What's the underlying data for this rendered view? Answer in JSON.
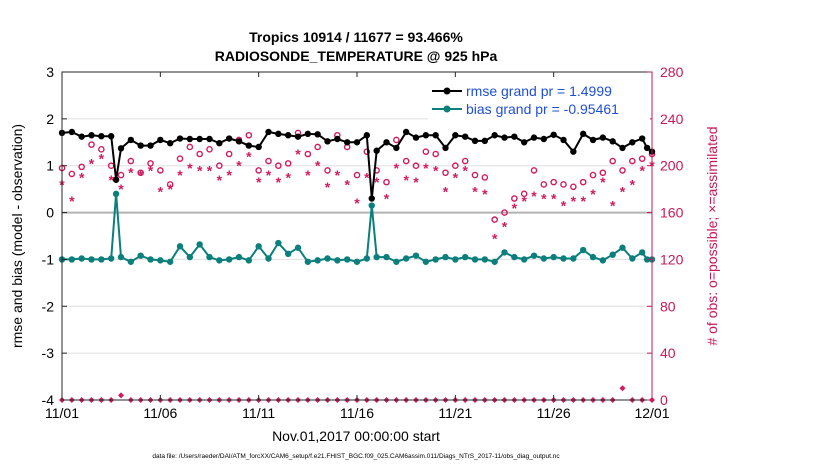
{
  "chart_data": {
    "type": "line",
    "title": "Tropics 10914 / 11677 = 93.466%",
    "subtitle": "RADIOSONDE_TEMPERATURE @ 925 hPa",
    "xlabel": "Nov.01,2017 00:00:00 start",
    "ylabel": "rmse and bias (model - observation)",
    "y2label": "# of obs: o=possible; ×=assimilated",
    "footnote": "data file: /Users/raeder/DAI/ATM_forcXX/CAM6_setup/f.e21.FHIST_BGC.f09_025.CAM6assim.011/Diags_NTrS_2017-11/obs_diag_output.nc",
    "xlim": [
      0,
      30
    ],
    "ylim": [
      -4,
      3
    ],
    "y2lim": [
      0,
      280
    ],
    "x_ticks": [
      0,
      5,
      10,
      15,
      20,
      25,
      30
    ],
    "x_tick_labels": [
      "11/01",
      "11/06",
      "11/11",
      "11/16",
      "11/21",
      "11/26",
      "12/01"
    ],
    "y_ticks": [
      -4,
      -3,
      -2,
      -1,
      0,
      1,
      2,
      3
    ],
    "y_tick_labels": [
      "-4",
      "-3",
      "-2",
      "-1",
      "0",
      "1",
      "2",
      "3"
    ],
    "y2_ticks": [
      0,
      40,
      80,
      120,
      160,
      200,
      240,
      280
    ],
    "y2_tick_labels": [
      "0",
      "40",
      "80",
      "120",
      "160",
      "200",
      "240",
      "280"
    ],
    "legend": {
      "position": "top-right",
      "entries": [
        "rmse grand pr = 1.4999",
        "bias grand pr = -0.95461"
      ]
    },
    "colors": {
      "rmse": "#000000",
      "bias": "#0a7f7c",
      "obs": "#d11a5f",
      "zero_line": "#b3b3b3",
      "grid": "#e0e0e0",
      "legend_text": "#1f4fd6",
      "right_axis": "#c8185a"
    },
    "series": [
      {
        "name": "rmse",
        "axis": "left",
        "x": [
          0,
          0.5,
          1,
          1.5,
          2,
          2.5,
          2.75,
          3,
          3.5,
          4,
          4.5,
          5,
          5.5,
          6,
          6.5,
          7,
          7.5,
          8,
          8.5,
          9,
          9.5,
          10,
          10.5,
          11,
          11.5,
          12,
          12.5,
          13,
          13.5,
          14,
          14.5,
          15,
          15.5,
          15.75,
          16,
          16.5,
          17,
          17.5,
          18,
          18.5,
          19,
          19.5,
          20,
          20.5,
          21,
          21.5,
          22,
          22.5,
          23,
          23.5,
          24,
          24.5,
          25,
          25.5,
          26,
          26.5,
          27,
          27.5,
          28,
          28.5,
          29,
          29.5,
          29.75,
          30
        ],
        "values": [
          1.7,
          1.72,
          1.62,
          1.65,
          1.63,
          1.63,
          0.7,
          1.37,
          1.55,
          1.43,
          1.43,
          1.55,
          1.48,
          1.58,
          1.57,
          1.57,
          1.57,
          1.48,
          1.58,
          1.52,
          1.43,
          1.4,
          1.72,
          1.68,
          1.65,
          1.62,
          1.68,
          1.67,
          1.52,
          1.57,
          1.5,
          1.5,
          1.65,
          0.3,
          1.32,
          1.5,
          1.38,
          1.72,
          1.6,
          1.65,
          1.65,
          1.38,
          1.65,
          1.62,
          1.53,
          1.53,
          1.65,
          1.6,
          1.62,
          1.5,
          1.6,
          1.57,
          1.66,
          1.55,
          1.3,
          1.68,
          1.55,
          1.6,
          1.52,
          1.38,
          1.5,
          1.58,
          1.38,
          1.3
        ]
      },
      {
        "name": "bias",
        "axis": "left",
        "x": [
          0,
          0.5,
          1,
          1.5,
          2,
          2.5,
          2.75,
          3,
          3.5,
          4,
          4.5,
          5,
          5.5,
          6,
          6.5,
          7,
          7.5,
          8,
          8.5,
          9,
          9.5,
          10,
          10.5,
          11,
          11.5,
          12,
          12.5,
          13,
          13.5,
          14,
          14.5,
          15,
          15.5,
          15.75,
          16,
          16.5,
          17,
          17.5,
          18,
          18.5,
          19,
          19.5,
          20,
          20.5,
          21,
          21.5,
          22,
          22.5,
          23,
          23.5,
          24,
          24.5,
          25,
          25.5,
          26,
          26.5,
          27,
          27.5,
          28,
          28.5,
          29,
          29.5,
          29.75,
          30
        ],
        "values": [
          -1.0,
          -1.0,
          -0.98,
          -1.0,
          -1.0,
          -0.98,
          0.4,
          -0.95,
          -1.05,
          -0.92,
          -1.0,
          -1.02,
          -1.05,
          -0.72,
          -0.95,
          -0.68,
          -0.95,
          -1.02,
          -1.0,
          -0.95,
          -1.02,
          -0.72,
          -0.98,
          -0.65,
          -0.88,
          -0.75,
          -1.05,
          -1.02,
          -0.98,
          -1.02,
          -1.0,
          -1.05,
          -0.98,
          0.15,
          -0.95,
          -0.95,
          -1.05,
          -0.98,
          -0.92,
          -1.05,
          -1.0,
          -0.95,
          -1.0,
          -0.95,
          -1.0,
          -1.0,
          -1.05,
          -0.85,
          -0.95,
          -1.0,
          -0.92,
          -0.98,
          -0.95,
          -0.98,
          -0.98,
          -0.8,
          -0.95,
          -1.02,
          -0.9,
          -0.75,
          -0.98,
          -0.85,
          -1.0,
          -1.0
        ]
      },
      {
        "name": "obs possible",
        "axis": "right",
        "x": [
          0,
          0.5,
          1,
          1.5,
          2,
          2.5,
          3,
          3.5,
          4,
          4.5,
          5,
          5.5,
          6,
          6.5,
          7,
          7.5,
          8,
          8.5,
          9,
          9.5,
          10,
          10.5,
          11,
          11.5,
          12,
          12.5,
          13,
          13.5,
          14,
          14.5,
          15,
          15.5,
          16,
          16.5,
          17,
          17.5,
          18,
          18.5,
          19,
          19.5,
          20,
          20.5,
          21,
          21.5,
          22,
          22.5,
          23,
          23.5,
          24,
          24.5,
          25,
          25.5,
          26,
          26.5,
          27,
          27.5,
          28,
          28.5,
          29,
          29.5,
          30
        ],
        "values": [
          198,
          193,
          199,
          218,
          214,
          200,
          192,
          204,
          194,
          202,
          196,
          184,
          206,
          216,
          210,
          214,
          200,
          210,
          222,
          226,
          196,
          204,
          200,
          202,
          228,
          210,
          216,
          196,
          226,
          216,
          192,
          212,
          196,
          186,
          222,
          204,
          200,
          212,
          210,
          194,
          200,
          204,
          192,
          190,
          154,
          160,
          172,
          176,
          196,
          184,
          186,
          184,
          182,
          186,
          192,
          194,
          204,
          196,
          204,
          206,
          210
        ]
      },
      {
        "name": "obs assimilated",
        "axis": "right",
        "x": [
          0,
          0.5,
          1,
          1.5,
          2,
          2.5,
          3,
          3.5,
          4,
          4.5,
          5,
          5.5,
          6,
          6.5,
          7,
          7.5,
          8,
          8.5,
          9,
          9.5,
          10,
          10.5,
          11,
          11.5,
          12,
          12.5,
          13,
          13.5,
          14,
          14.5,
          15,
          15.5,
          16,
          16.5,
          17,
          17.5,
          18,
          18.5,
          19,
          19.5,
          20,
          20.5,
          21,
          21.5,
          22,
          22.5,
          23,
          23.5,
          24,
          24.5,
          25,
          25.5,
          26,
          26.5,
          27,
          27.5,
          28,
          28.5,
          29,
          29.5,
          30
        ],
        "values": [
          184,
          170,
          190,
          202,
          206,
          188,
          180,
          194,
          192,
          196,
          178,
          180,
          192,
          198,
          196,
          196,
          188,
          192,
          200,
          208,
          186,
          192,
          186,
          190,
          210,
          192,
          200,
          182,
          192,
          184,
          168,
          190,
          186,
          172,
          198,
          188,
          186,
          198,
          196,
          178,
          190,
          196,
          178,
          176,
          138,
          148,
          164,
          170,
          174,
          172,
          172,
          166,
          170,
          170,
          176,
          186,
          166,
          178,
          184,
          196,
          200
        ]
      },
      {
        "name": "rejected possible",
        "axis": "right",
        "x": [
          0,
          0.5,
          1,
          1.5,
          2,
          2.5,
          3,
          3.5,
          4,
          4.5,
          5,
          5.5,
          6,
          6.5,
          7,
          7.5,
          8,
          8.5,
          9,
          9.5,
          10,
          10.5,
          11,
          11.5,
          12,
          12.5,
          13,
          13.5,
          14,
          14.5,
          15,
          15.5,
          16,
          16.5,
          17,
          17.5,
          18,
          18.5,
          19,
          19.5,
          20,
          20.5,
          21,
          21.5,
          22,
          22.5,
          23,
          23.5,
          24,
          24.5,
          25,
          25.5,
          26,
          26.5,
          27,
          27.5,
          28,
          28.5,
          29,
          29.5,
          30
        ],
        "values": [
          0,
          0,
          0,
          0,
          0,
          0,
          4,
          0,
          0,
          0,
          0,
          0,
          0,
          0,
          0,
          0,
          0,
          0,
          0,
          0,
          0,
          0,
          0,
          0,
          0,
          0,
          0,
          0,
          0,
          0,
          0,
          0,
          0,
          0,
          0,
          0,
          0,
          0,
          0,
          0,
          0,
          0,
          0,
          0,
          0,
          0,
          0,
          0,
          0,
          0,
          0,
          0,
          0,
          0,
          0,
          0,
          0,
          10,
          0,
          0,
          0
        ]
      }
    ]
  }
}
